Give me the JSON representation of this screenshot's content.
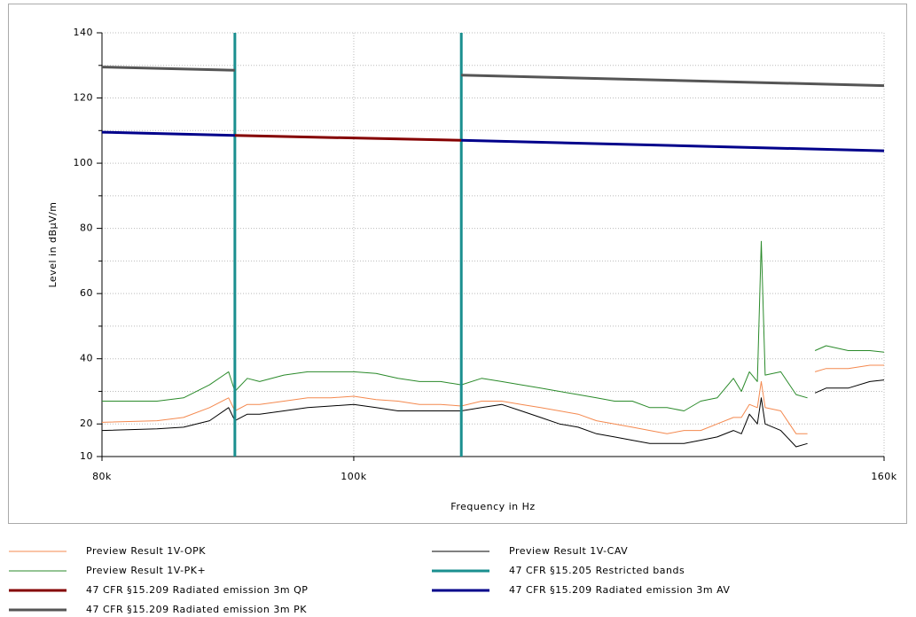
{
  "chart_data": {
    "type": "line",
    "xscale": "log",
    "xlabel": "Frequency in Hz",
    "ylabel": "Level in dBµV/m",
    "xlim": [
      80000,
      160000
    ],
    "xticks": [
      {
        "value": 80000,
        "label": "80k"
      },
      {
        "value": 100000,
        "label": "100k"
      },
      {
        "value": 160000,
        "label": "160k"
      }
    ],
    "ylim": [
      10,
      140
    ],
    "yticks": [
      10,
      20,
      40,
      60,
      80,
      100,
      120,
      140
    ],
    "yminor": [
      30,
      50,
      70,
      90,
      110,
      130
    ],
    "grid": true,
    "legend": "bottom",
    "series": [
      {
        "name": "Preview Result 1V-OPK",
        "color": "#f4894f",
        "width": 1,
        "x": [
          80000,
          84000,
          86000,
          88000,
          89500,
          90000,
          91000,
          92000,
          94000,
          96000,
          98000,
          100000,
          102000,
          104000,
          106000,
          108000,
          110000,
          112000,
          114000,
          116000,
          118000,
          120000,
          122000,
          124000,
          126000,
          128000,
          130000,
          132000,
          134000,
          136000,
          138000,
          140000,
          141000,
          142000,
          143000,
          143500,
          144000,
          146000,
          148000,
          149500,
          150000,
          150500,
          152000,
          155000,
          158000,
          160000
        ],
        "values": [
          20.5,
          21,
          22,
          25,
          28,
          24,
          26,
          26,
          27,
          28,
          28,
          28.5,
          27.5,
          27,
          26,
          26,
          25.5,
          27,
          27,
          26,
          25,
          24,
          23,
          21,
          20,
          19,
          18,
          17,
          18,
          18,
          20,
          22,
          22,
          26,
          25,
          33,
          25,
          24,
          17,
          17,
          null,
          36,
          37,
          37,
          38,
          38
        ]
      },
      {
        "name": "Preview Result 1V-CAV",
        "color": "#000000",
        "width": 1,
        "x": [
          80000,
          84000,
          86000,
          88000,
          89500,
          90000,
          91000,
          92000,
          94000,
          96000,
          98000,
          100000,
          102000,
          104000,
          106000,
          108000,
          110000,
          112000,
          114000,
          116000,
          118000,
          120000,
          122000,
          124000,
          126000,
          128000,
          130000,
          132000,
          134000,
          136000,
          138000,
          140000,
          141000,
          142000,
          143000,
          143500,
          144000,
          146000,
          148000,
          149500,
          150000,
          150500,
          152000,
          155000,
          158000,
          160000
        ],
        "values": [
          18,
          18.5,
          19,
          21,
          25,
          21,
          23,
          23,
          24,
          25,
          25.5,
          26,
          25,
          24,
          24,
          24,
          24,
          25,
          26,
          24,
          22,
          20,
          19,
          17,
          16,
          15,
          14,
          14,
          14,
          15,
          16,
          18,
          17,
          23,
          20,
          28,
          20,
          18,
          13,
          14,
          null,
          29.5,
          31,
          31,
          33,
          33.5
        ]
      },
      {
        "name": "Preview Result 1V-PK+",
        "color": "#2a8a2a",
        "width": 1,
        "x": [
          80000,
          84000,
          86000,
          88000,
          89500,
          90000,
          91000,
          92000,
          94000,
          96000,
          98000,
          100000,
          102000,
          104000,
          106000,
          108000,
          110000,
          112000,
          114000,
          116000,
          118000,
          120000,
          122000,
          124000,
          126000,
          128000,
          130000,
          132000,
          134000,
          136000,
          138000,
          140000,
          141000,
          142000,
          143000,
          143500,
          144000,
          146000,
          148000,
          149500,
          150000,
          150500,
          152000,
          155000,
          158000,
          160000
        ],
        "values": [
          27,
          27,
          28,
          32,
          36,
          30,
          34,
          33,
          35,
          36,
          36,
          36,
          35.5,
          34,
          33,
          33,
          32,
          34,
          33,
          32,
          31,
          30,
          29,
          28,
          27,
          27,
          25,
          25,
          24,
          27,
          28,
          34,
          30,
          36,
          33,
          76,
          35,
          36,
          29,
          28,
          null,
          42.5,
          44,
          42.5,
          42.5,
          42
        ]
      },
      {
        "name": "47 CFR §15.205 Restricted bands",
        "color": "#1a8f8f",
        "width": 3,
        "bands": [
          90000,
          110000
        ]
      },
      {
        "name": "47 CFR §15.209 Radiated emission 3m QP",
        "color": "#850000",
        "width": 3,
        "x": [
          90000,
          110000
        ],
        "values": [
          108.5,
          107
        ]
      },
      {
        "name": "47 CFR §15.209 Radiated emission 3m AV",
        "color": "#00008b",
        "width": 3,
        "x": [
          80000,
          90000,
          100000,
          110000,
          160000
        ],
        "values": [
          109.5,
          108.5,
          null,
          107,
          103.8
        ]
      },
      {
        "name": "47 CFR §15.209 Radiated emission 3m PK",
        "color": "#555555",
        "width": 3,
        "x": [
          80000,
          90000,
          100000,
          110000,
          160000
        ],
        "values": [
          129.5,
          128.5,
          null,
          127,
          123.8
        ]
      }
    ]
  }
}
